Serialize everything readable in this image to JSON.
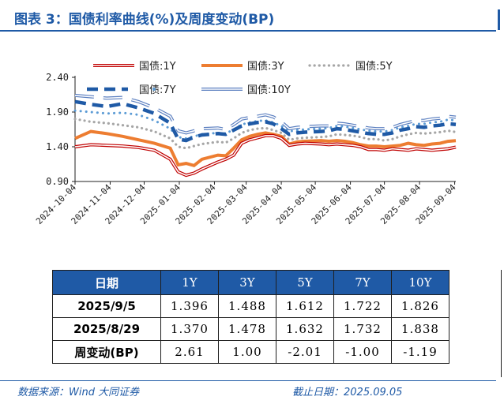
{
  "title": "图表 3：国债利率曲线(%)及周度变动(BP)",
  "chart_data": {
    "type": "line",
    "title": "",
    "xlabel": "",
    "ylabel": "",
    "ylim": [
      0.9,
      2.4
    ],
    "yticks": [
      "2.40",
      "1.90",
      "1.40",
      "0.90"
    ],
    "ytick_values": [
      2.4,
      1.9,
      1.4,
      0.9
    ],
    "xtick_labels": [
      "2024-10-04",
      "2024-11-04",
      "2024-12-04",
      "2025-01-04",
      "2025-02-04",
      "2025-03-04",
      "2025-04-04",
      "2025-05-04",
      "2025-06-04",
      "2025-07-04",
      "2025-08-04",
      "2025-09-04"
    ],
    "x": [
      "2024-10-04",
      "2024-10-18",
      "2024-11-01",
      "2024-11-15",
      "2024-11-29",
      "2024-12-13",
      "2024-12-27",
      "2025-01-03",
      "2025-01-10",
      "2025-01-17",
      "2025-01-24",
      "2025-02-07",
      "2025-02-14",
      "2025-02-21",
      "2025-02-28",
      "2025-03-07",
      "2025-03-14",
      "2025-03-21",
      "2025-03-28",
      "2025-04-04",
      "2025-04-11",
      "2025-04-18",
      "2025-04-25",
      "2025-05-09",
      "2025-05-16",
      "2025-05-23",
      "2025-05-30",
      "2025-06-06",
      "2025-06-13",
      "2025-06-20",
      "2025-06-27",
      "2025-07-04",
      "2025-07-11",
      "2025-07-18",
      "2025-07-25",
      "2025-08-01",
      "2025-08-08",
      "2025-08-15",
      "2025-08-22",
      "2025-08-29",
      "2025-09-05"
    ],
    "legend": {
      "position": "top",
      "columns": 3
    },
    "series": [
      {
        "name": "国债:1Y",
        "color": "#c00000",
        "style": "double",
        "values": [
          1.4,
          1.43,
          1.42,
          1.41,
          1.39,
          1.35,
          1.22,
          1.04,
          0.99,
          1.02,
          1.08,
          1.18,
          1.22,
          1.28,
          1.45,
          1.5,
          1.53,
          1.56,
          1.56,
          1.52,
          1.42,
          1.44,
          1.45,
          1.44,
          1.43,
          1.44,
          1.43,
          1.42,
          1.4,
          1.36,
          1.36,
          1.35,
          1.37,
          1.36,
          1.35,
          1.37,
          1.36,
          1.35,
          1.36,
          1.37,
          1.396
        ]
      },
      {
        "name": "国债:3Y",
        "color": "#ed7d31",
        "style": "thick",
        "values": [
          1.52,
          1.62,
          1.59,
          1.55,
          1.5,
          1.45,
          1.38,
          1.14,
          1.16,
          1.13,
          1.22,
          1.28,
          1.27,
          1.38,
          1.5,
          1.55,
          1.58,
          1.6,
          1.58,
          1.55,
          1.44,
          1.47,
          1.48,
          1.49,
          1.48,
          1.49,
          1.48,
          1.46,
          1.43,
          1.41,
          1.41,
          1.4,
          1.41,
          1.42,
          1.45,
          1.43,
          1.42,
          1.44,
          1.45,
          1.478,
          1.488
        ]
      },
      {
        "name": "国债:5Y",
        "color": "#a6a6a6",
        "style": "dotted",
        "values": [
          1.8,
          1.76,
          1.74,
          1.71,
          1.68,
          1.62,
          1.52,
          1.4,
          1.38,
          1.41,
          1.44,
          1.47,
          1.46,
          1.52,
          1.6,
          1.64,
          1.66,
          1.67,
          1.64,
          1.6,
          1.5,
          1.52,
          1.53,
          1.54,
          1.55,
          1.58,
          1.57,
          1.56,
          1.54,
          1.51,
          1.51,
          1.49,
          1.51,
          1.55,
          1.58,
          1.6,
          1.59,
          1.6,
          1.61,
          1.632,
          1.612
        ]
      },
      {
        "name": "国债:7Y",
        "color": "#1f5aa6",
        "style": "dashed",
        "values": [
          2.05,
          2.01,
          1.98,
          2.02,
          1.96,
          1.88,
          1.74,
          1.51,
          1.49,
          1.54,
          1.57,
          1.59,
          1.58,
          1.64,
          1.7,
          1.73,
          1.75,
          1.76,
          1.73,
          1.66,
          1.58,
          1.6,
          1.61,
          1.62,
          1.63,
          1.66,
          1.65,
          1.63,
          1.61,
          1.59,
          1.58,
          1.58,
          1.6,
          1.64,
          1.66,
          1.69,
          1.68,
          1.7,
          1.71,
          1.732,
          1.722
        ]
      },
      {
        "name": "国债:10Y",
        "color": "#1f5aa6",
        "style": "hollow",
        "values": [
          2.14,
          2.12,
          2.1,
          2.11,
          2.05,
          1.96,
          1.84,
          1.63,
          1.6,
          1.63,
          1.66,
          1.67,
          1.65,
          1.72,
          1.8,
          1.82,
          1.84,
          1.86,
          1.83,
          1.76,
          1.66,
          1.68,
          1.69,
          1.7,
          1.7,
          1.74,
          1.73,
          1.71,
          1.69,
          1.67,
          1.66,
          1.66,
          1.68,
          1.72,
          1.75,
          1.78,
          1.78,
          1.8,
          1.81,
          1.838,
          1.826
        ]
      },
      {
        "name": "",
        "color": "#5b9bd5",
        "style": "dotted-blue",
        "values": [
          1.92,
          1.9,
          1.88,
          1.89,
          1.86,
          1.78,
          1.66,
          1.54,
          1.52,
          1.55,
          1.58,
          1.6,
          1.59,
          1.65,
          1.72,
          1.75,
          1.77,
          1.78,
          1.75,
          1.7,
          1.62,
          1.64,
          1.65,
          1.66,
          1.67,
          1.7,
          1.69,
          1.67,
          1.65,
          1.63,
          1.62,
          1.62,
          1.64,
          1.68,
          1.7,
          1.73,
          1.73,
          1.75,
          1.76,
          1.79,
          1.78
        ]
      }
    ]
  },
  "table": {
    "header": [
      "日期",
      "1Y",
      "3Y",
      "5Y",
      "7Y",
      "10Y"
    ],
    "rows": [
      {
        "label": "2025/9/5",
        "values": [
          "1.396",
          "1.488",
          "1.612",
          "1.722",
          "1.826"
        ]
      },
      {
        "label": "2025/8/29",
        "values": [
          "1.370",
          "1.478",
          "1.632",
          "1.732",
          "1.838"
        ]
      },
      {
        "label": "周变动(BP)",
        "values": [
          "2.61",
          "1.00",
          "-2.01",
          "-1.00",
          "-1.19"
        ]
      }
    ]
  },
  "footer": {
    "source": "数据来源：Wind 大同证券",
    "as_of": "截止日期：2025.09.05"
  }
}
